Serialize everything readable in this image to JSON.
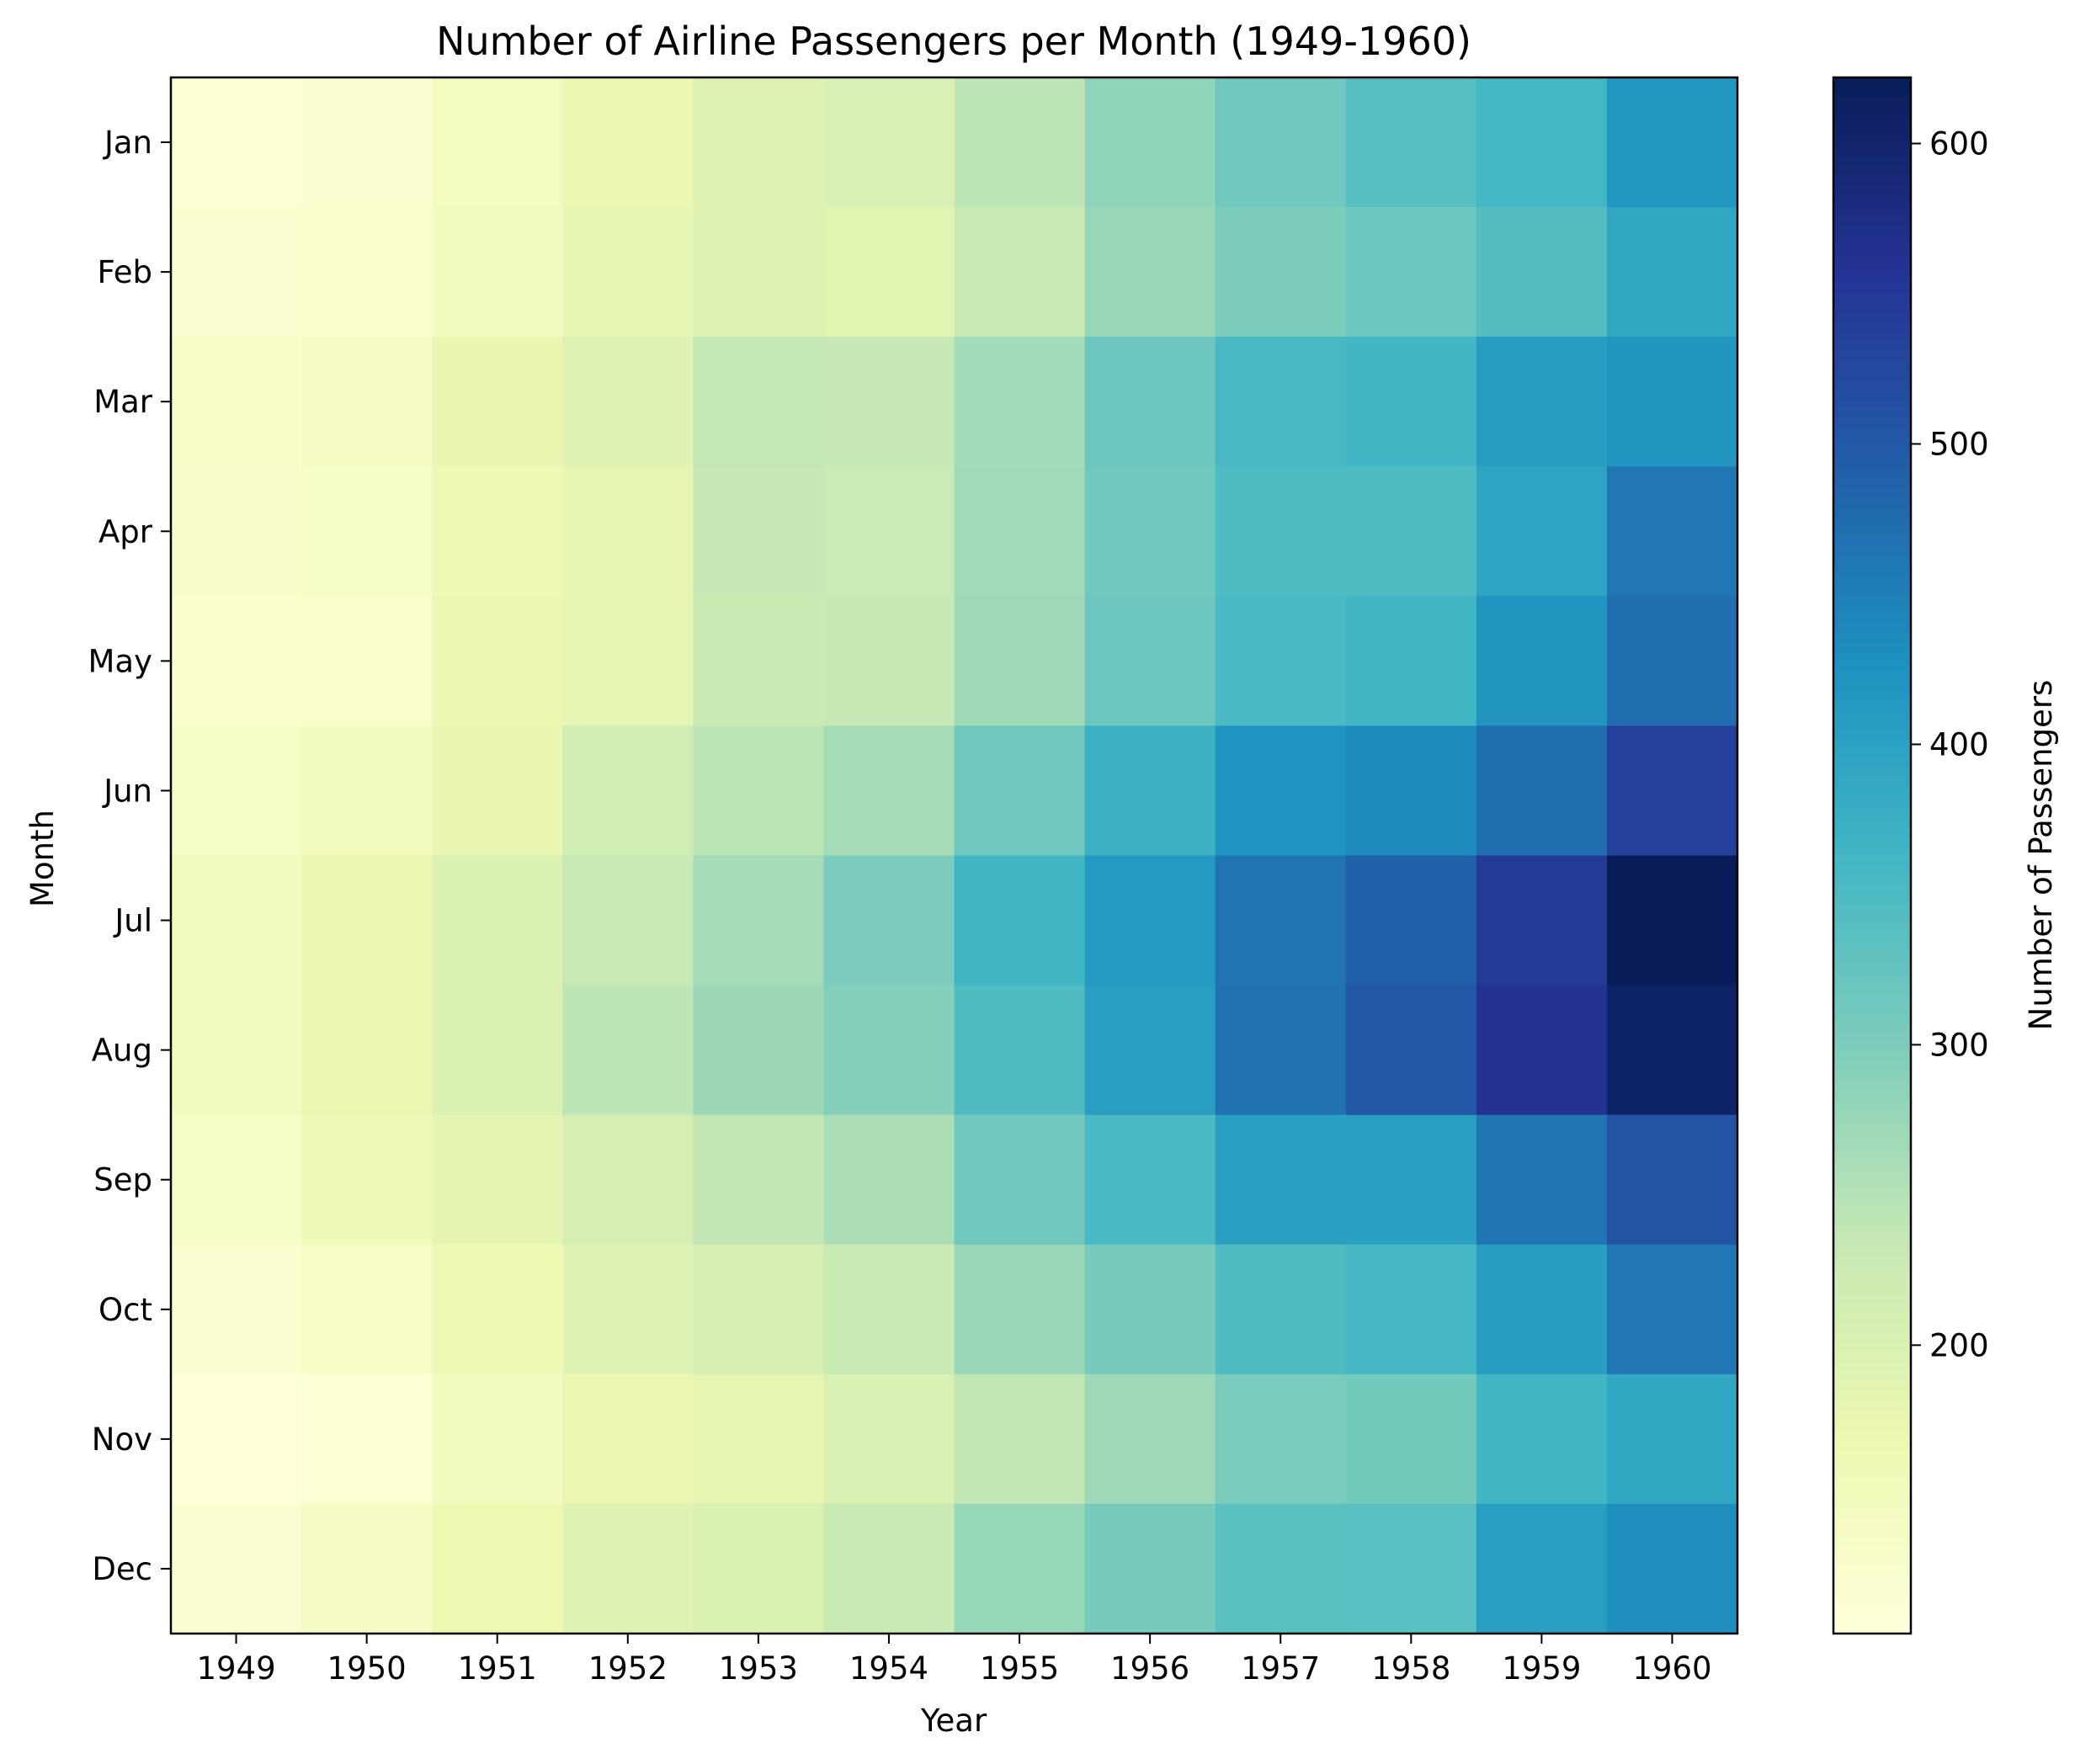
{
  "chart_data": {
    "type": "heatmap",
    "title": "Number of Airline Passengers per Month (1949-1960)",
    "xlabel": "Year",
    "ylabel": "Month",
    "x": [
      "1949",
      "1950",
      "1951",
      "1952",
      "1953",
      "1954",
      "1955",
      "1956",
      "1957",
      "1958",
      "1959",
      "1960"
    ],
    "y": [
      "Jan",
      "Feb",
      "Mar",
      "Apr",
      "May",
      "Jun",
      "Jul",
      "Aug",
      "Sep",
      "Oct",
      "Nov",
      "Dec"
    ],
    "values": [
      [
        112,
        115,
        145,
        171,
        196,
        204,
        242,
        284,
        315,
        340,
        360,
        417
      ],
      [
        118,
        126,
        150,
        180,
        196,
        188,
        233,
        277,
        301,
        318,
        342,
        391
      ],
      [
        132,
        141,
        178,
        193,
        236,
        235,
        267,
        317,
        356,
        362,
        406,
        419
      ],
      [
        129,
        135,
        163,
        181,
        235,
        227,
        269,
        313,
        348,
        348,
        396,
        461
      ],
      [
        121,
        125,
        172,
        183,
        229,
        234,
        270,
        318,
        355,
        363,
        420,
        472
      ],
      [
        135,
        149,
        178,
        218,
        243,
        264,
        315,
        374,
        422,
        435,
        472,
        535
      ],
      [
        148,
        170,
        199,
        230,
        264,
        302,
        364,
        413,
        465,
        491,
        548,
        622
      ],
      [
        148,
        170,
        199,
        242,
        272,
        293,
        347,
        405,
        467,
        505,
        559,
        606
      ],
      [
        136,
        158,
        184,
        209,
        237,
        259,
        312,
        355,
        404,
        404,
        463,
        508
      ],
      [
        119,
        133,
        162,
        191,
        211,
        229,
        274,
        306,
        347,
        359,
        407,
        461
      ],
      [
        104,
        114,
        146,
        172,
        180,
        203,
        237,
        271,
        305,
        310,
        362,
        390
      ],
      [
        118,
        140,
        166,
        194,
        201,
        229,
        278,
        306,
        336,
        337,
        405,
        432
      ]
    ],
    "colormap": "YlGnBu",
    "vmin": 104,
    "vmax": 622,
    "colorbar": {
      "label": "Number of Passengers",
      "ticks": [
        "200",
        "300",
        "400",
        "500",
        "600"
      ]
    },
    "grid": false
  }
}
